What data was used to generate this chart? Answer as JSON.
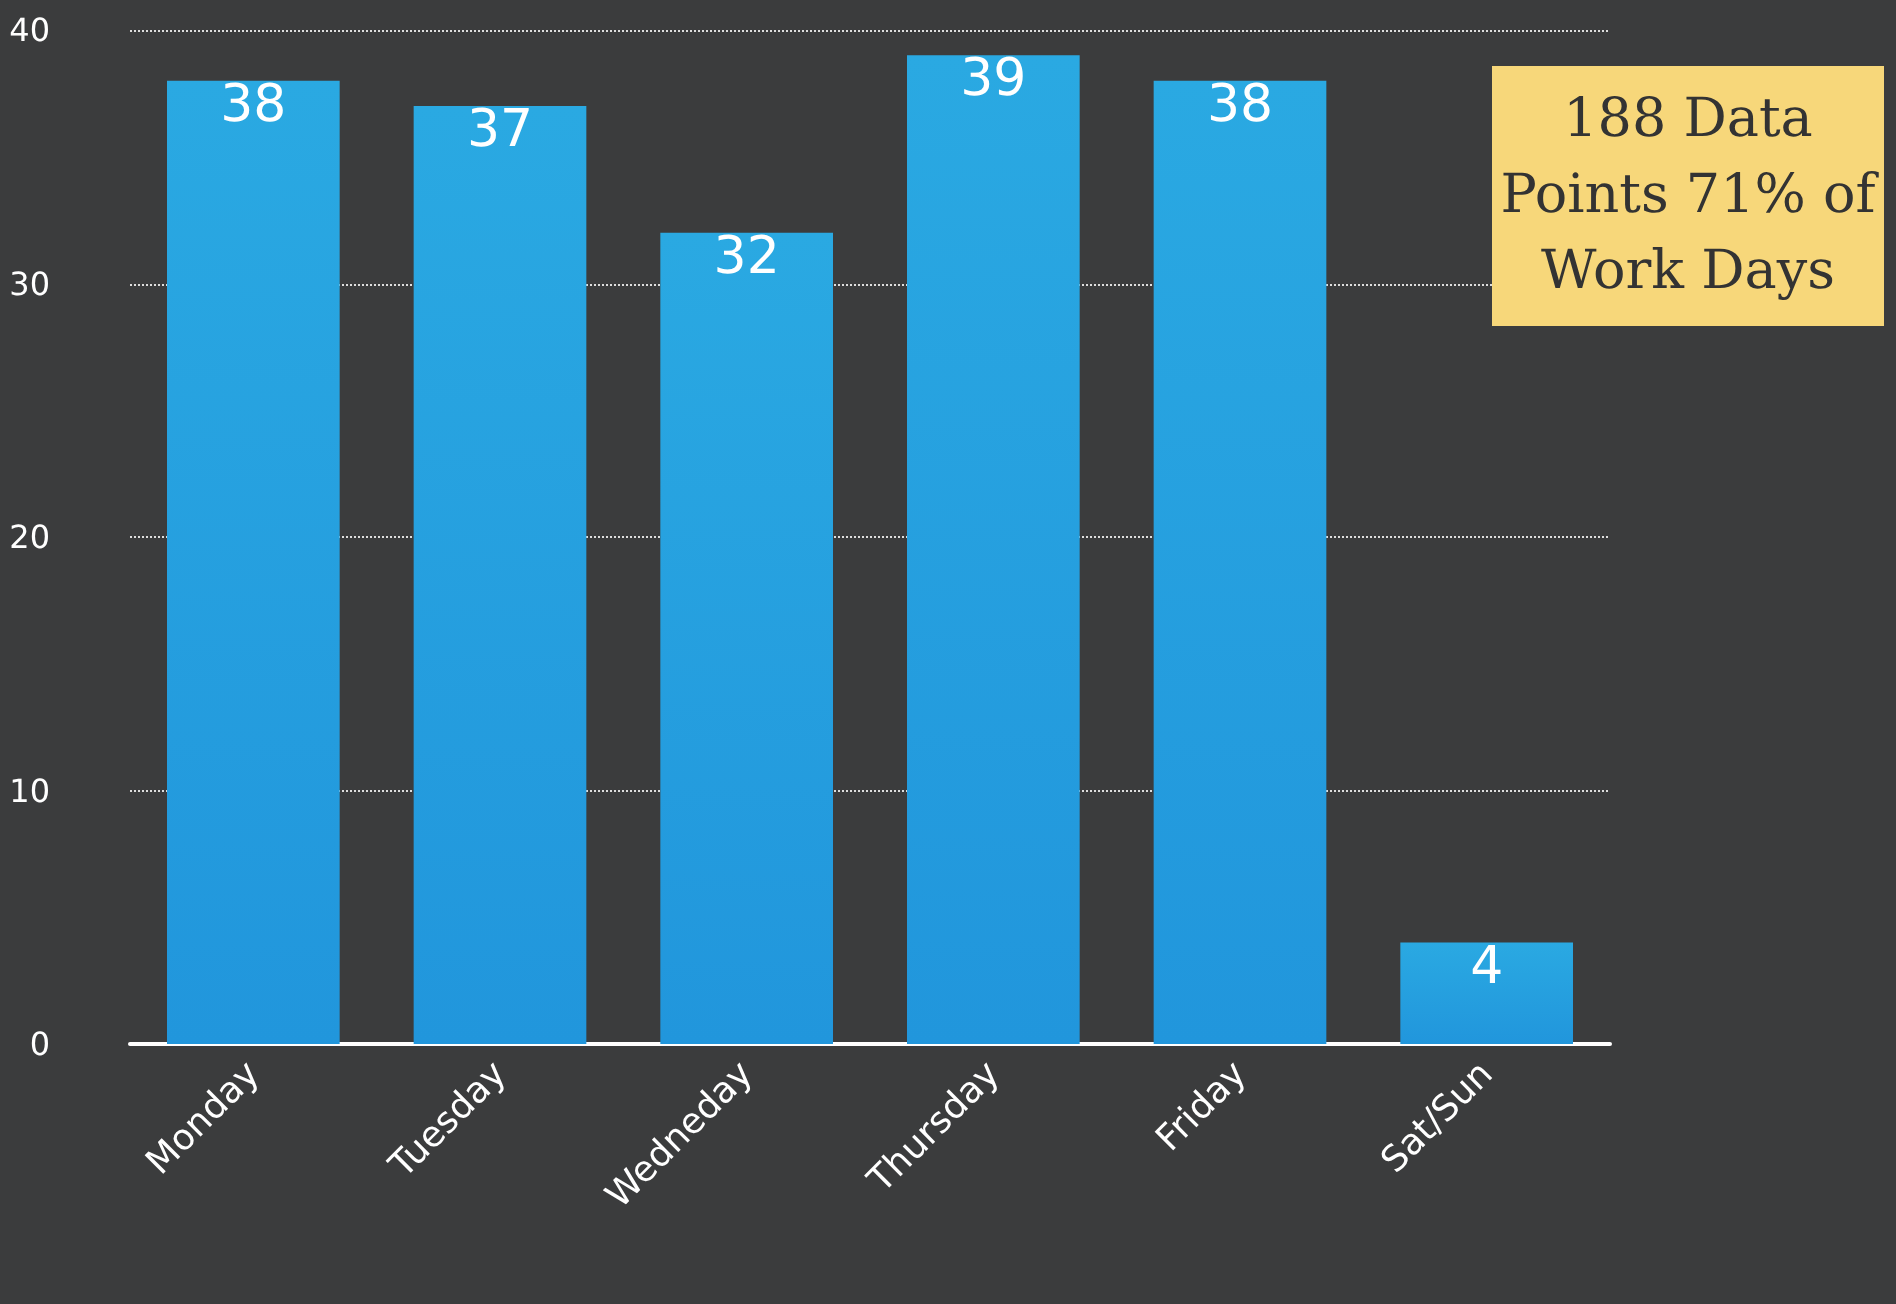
{
  "chart_data": {
    "type": "bar",
    "categories": [
      "Monday",
      "Tuesday",
      "Wedneday",
      "Thursday",
      "Friday",
      "Sat/Sun"
    ],
    "values": [
      38,
      37,
      32,
      39,
      38,
      4
    ],
    "color": "#2196dc",
    "ylim": [
      0,
      40
    ],
    "yticks": [
      0,
      10,
      20,
      30,
      40
    ],
    "grid": "y",
    "data_labels": true,
    "annotations": [
      "188 Data Points 71% of Work Days"
    ]
  }
}
